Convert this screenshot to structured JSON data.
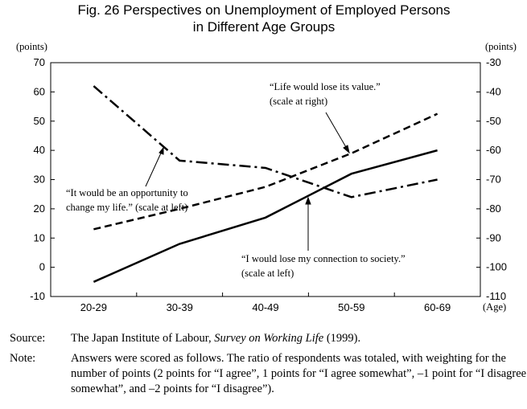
{
  "chart_data": {
    "type": "line",
    "title_lines": [
      "Fig. 26  Perspectives on Unemployment of Employed Persons",
      "in Different Age Groups"
    ],
    "y_unit": "(points)",
    "y2_unit": "(points)",
    "x_unit": "(Age)",
    "categories": [
      "20-29",
      "30-39",
      "40-49",
      "50-59",
      "60-69"
    ],
    "ylim": [
      -10,
      70
    ],
    "yticks": [
      -10,
      0,
      10,
      20,
      30,
      40,
      50,
      60,
      70
    ],
    "y2lim": [
      -110,
      -30
    ],
    "y2ticks": [
      -110,
      -100,
      -90,
      -80,
      -70,
      -60,
      -50,
      -40,
      -30
    ],
    "series": [
      {
        "color": "#000000",
        "style": "solid",
        "values": [
          -5,
          8,
          17,
          32,
          40
        ],
        "annotation": [
          "“I would lose my connection to society.”",
          "(scale at left)"
        ]
      },
      {
        "color": "#000000",
        "style": "dashdot",
        "values": [
          62,
          36.5,
          34,
          24,
          30
        ],
        "annotation": [
          "“It would be an opportunity to",
          "change my life.” (scale at left)"
        ]
      },
      {
        "color": "#000000",
        "style": "dashed",
        "axis": "y2",
        "values": [
          -87,
          -80,
          -72.5,
          -61,
          -47.5
        ],
        "annotation": [
          "“Life would lose its value.”",
          "(scale at right)"
        ]
      }
    ]
  },
  "source": {
    "label": "Source:",
    "before": "The Japan Institute of Labour, ",
    "italic": "Survey on Working Life",
    "after": " (1999)."
  },
  "note": {
    "label": "Note:",
    "text": "Answers were scored as follows.  The ratio of respondents was totaled, with weighting for the number of points (2 points for “I agree”, 1 points for “I agree somewhat”, –1 point for “I disagree somewhat”, and –2 points for “I disagree”)."
  }
}
